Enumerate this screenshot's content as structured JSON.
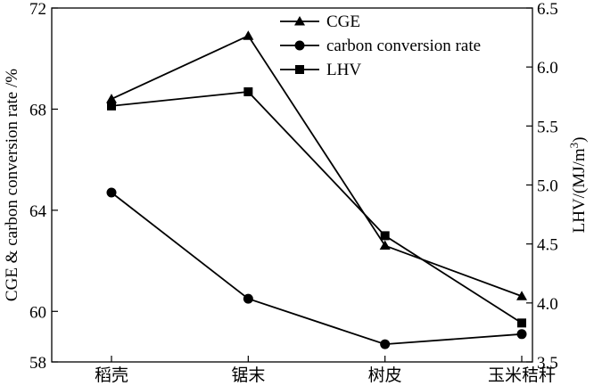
{
  "chart_data": {
    "type": "line",
    "categories": [
      "稻壳",
      "锯末",
      "树皮",
      "玉米秸秆"
    ],
    "y_left": {
      "label": "CGE & carbon conversion rate /%",
      "range": [
        58,
        72
      ],
      "ticks": [
        58,
        60,
        64,
        68,
        72
      ]
    },
    "y_right": {
      "label_main": "LHV/(MJ/m",
      "label_sup": "3",
      "label_close": ")",
      "range": [
        3.5,
        6.5
      ],
      "ticks": [
        "3.5",
        "4.0",
        "4.5",
        "5.0",
        "5.5",
        "6.0",
        "6.5"
      ]
    },
    "series": [
      {
        "name": "CGE",
        "axis": "left",
        "marker": "triangle",
        "values": [
          68.4,
          70.9,
          62.6,
          60.6
        ]
      },
      {
        "name": "carbon conversion rate",
        "axis": "left",
        "marker": "circle",
        "values": [
          64.7,
          60.5,
          58.7,
          59.1
        ]
      },
      {
        "name": "LHV",
        "axis": "right",
        "marker": "square",
        "values": [
          5.67,
          5.79,
          4.57,
          3.83
        ]
      }
    ],
    "legend_position": "top-right",
    "grid": false
  }
}
